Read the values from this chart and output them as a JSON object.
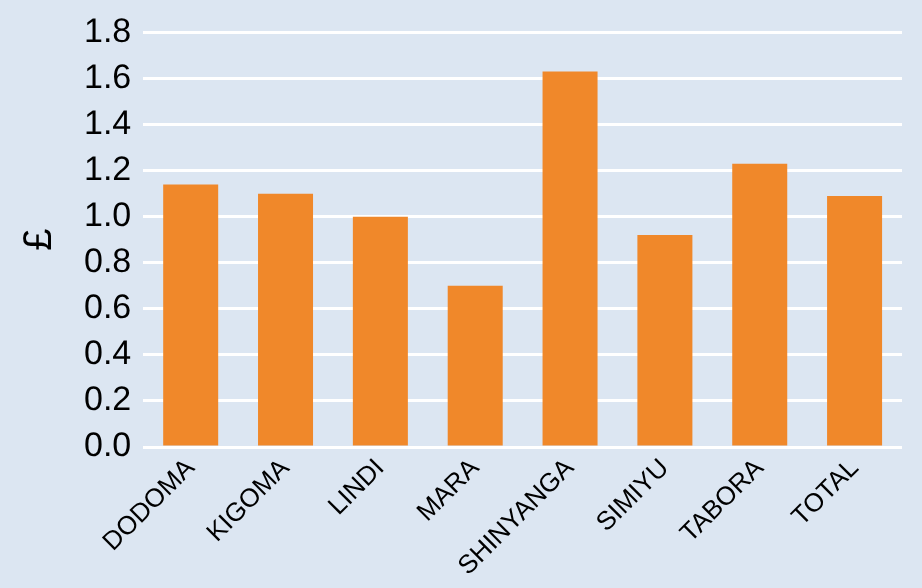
{
  "chart_data": {
    "type": "bar",
    "ylabel": "£",
    "categories": [
      "DODOMA",
      "KIGOMA",
      "LINDI",
      "MARA",
      "SHINYANGA",
      "SIMIYU",
      "TABORA",
      "TOTAL"
    ],
    "values": [
      1.14,
      1.1,
      1.0,
      0.7,
      1.63,
      0.92,
      1.23,
      1.09
    ],
    "color": "#f0882a",
    "ylim": [
      0,
      1.8
    ],
    "yticks": [
      {
        "value": 0,
        "label": "0.0"
      },
      {
        "value": 0.2,
        "label": "0.2"
      },
      {
        "value": 0.4,
        "label": "0.4"
      },
      {
        "value": 0.6,
        "label": "0.6"
      },
      {
        "value": 0.8,
        "label": "0.8"
      },
      {
        "value": 1,
        "label": "1.0"
      },
      {
        "value": 1.2,
        "label": "1.2"
      },
      {
        "value": 1.4,
        "label": "1.4"
      },
      {
        "value": 1.6,
        "label": "1.6"
      },
      {
        "value": 1.8,
        "label": "1.8"
      }
    ],
    "grid": "y",
    "legend": false
  }
}
